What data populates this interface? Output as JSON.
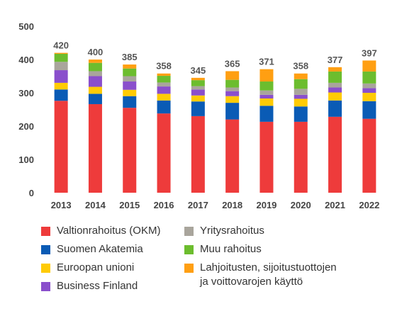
{
  "chart_data": {
    "type": "bar",
    "stacked": true,
    "categories": [
      "2013",
      "2014",
      "2015",
      "2016",
      "2017",
      "2018",
      "2019",
      "2020",
      "2021",
      "2022"
    ],
    "totals": [
      420,
      400,
      385,
      358,
      345,
      365,
      371,
      358,
      377,
      397
    ],
    "ylim": [
      0,
      500
    ],
    "yticks": [
      0,
      100,
      200,
      300,
      400,
      500
    ],
    "grid": false,
    "legend_position": "bottom",
    "series": [
      {
        "name": "Valtionrahoitus (OKM)",
        "color": "#EE3B3B",
        "values": [
          276,
          266,
          255,
          238,
          230,
          220,
          213,
          213,
          228,
          222
        ]
      },
      {
        "name": "Suomen Akatemia",
        "color": "#0A5BB5",
        "values": [
          34,
          31,
          35,
          39,
          44,
          50,
          48,
          46,
          49,
          53
        ]
      },
      {
        "name": "Euroopan unioni",
        "color": "#FFCB05",
        "values": [
          20,
          21,
          19,
          20,
          18,
          20,
          22,
          23,
          24,
          25
        ]
      },
      {
        "name": "Business Finland",
        "color": "#8A4FCC",
        "values": [
          38,
          32,
          25,
          22,
          18,
          15,
          11,
          12,
          15,
          14
        ]
      },
      {
        "name": "Yritysrahoitus",
        "color": "#A9A59C",
        "values": [
          25,
          15,
          16,
          12,
          10,
          11,
          13,
          18,
          14,
          14
        ]
      },
      {
        "name": "Muu rahoitus",
        "color": "#6CBD2E",
        "values": [
          24,
          25,
          23,
          20,
          18,
          23,
          27,
          29,
          34,
          36
        ]
      },
      {
        "name": "Lahjoitusten, sijoitustuottojen\nja voittovarojen käyttö",
        "color": "#FF9F12",
        "values": [
          3,
          10,
          12,
          7,
          7,
          26,
          37,
          17,
          13,
          33
        ]
      }
    ]
  }
}
